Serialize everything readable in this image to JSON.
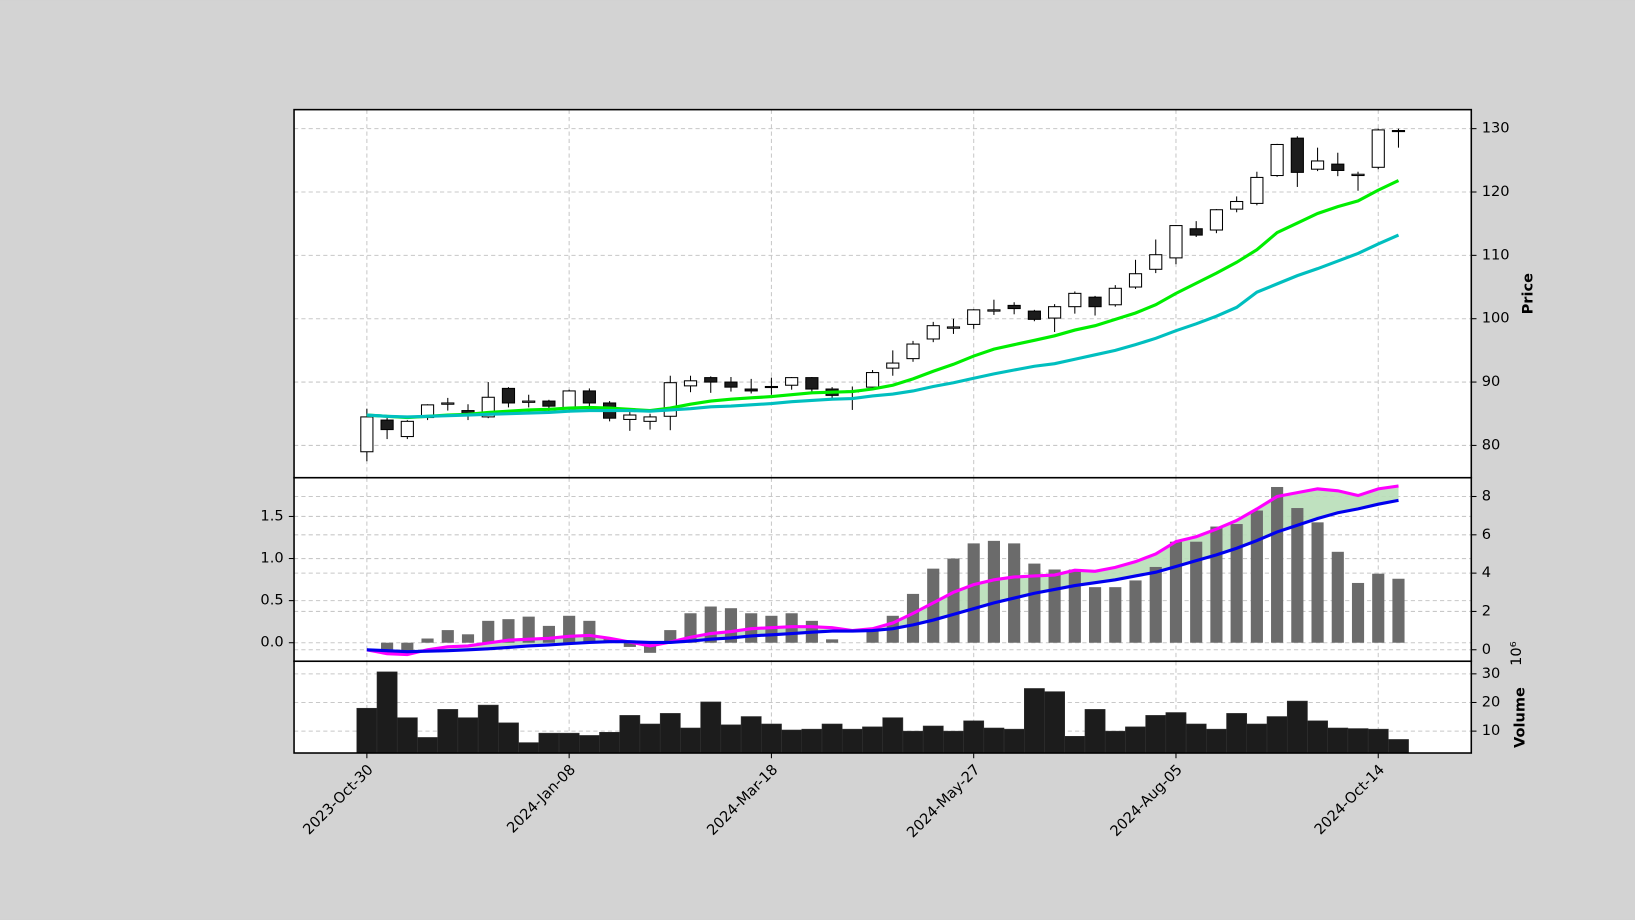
{
  "chart_data": [
    {
      "type": "candlestick",
      "categories": [
        "2023-Oct-30",
        null,
        null,
        null,
        null,
        null,
        null,
        null,
        null,
        null,
        "2024-Jan-08",
        null,
        null,
        null,
        null,
        null,
        null,
        null,
        null,
        null,
        "2024-Mar-18",
        null,
        null,
        null,
        null,
        null,
        null,
        null,
        null,
        null,
        "2024-May-27",
        null,
        null,
        null,
        null,
        null,
        null,
        null,
        null,
        null,
        "2024-Aug-05",
        null,
        null,
        null,
        null,
        null,
        null,
        null,
        null,
        null,
        "2024-Oct-14",
        null
      ],
      "open": [
        79,
        84,
        81.4,
        84.4,
        86.5,
        85.5,
        84.5,
        89,
        86.8,
        87,
        85.8,
        88.6,
        86.7,
        84.1,
        83.8,
        84.6,
        89.4,
        90.7,
        90,
        88.9,
        89.2,
        89.5,
        90.7,
        88.9,
        88.5,
        89.2,
        92.2,
        93.7,
        96.8,
        98.5,
        99.1,
        101.2,
        102.1,
        101.2,
        100.1,
        101.9,
        103.4,
        102.2,
        105,
        107.8,
        109.6,
        114.2,
        114,
        117.3,
        118.2,
        122.6,
        128.5,
        123.6,
        124.4,
        122.6,
        123.9,
        129.6
      ],
      "high": [
        85.8,
        84.5,
        84,
        86.5,
        87.5,
        86.5,
        90,
        89.2,
        88,
        87.2,
        88.8,
        89,
        87,
        85.5,
        85,
        91,
        91,
        90.9,
        90.8,
        90.5,
        90.7,
        90.8,
        90.8,
        89.2,
        89.3,
        91.9,
        95,
        96.5,
        99.5,
        100,
        101.5,
        103,
        102.6,
        101.4,
        102.3,
        104.3,
        103.6,
        105.3,
        109.3,
        112.5,
        114.8,
        115.4,
        117.3,
        119.3,
        123.2,
        127.6,
        128.8,
        127,
        126.2,
        123.2,
        130,
        130
      ],
      "low": [
        77.5,
        81,
        81,
        84,
        85.5,
        84,
        84.3,
        86,
        86,
        85,
        85.5,
        86,
        83.8,
        82.3,
        82.5,
        82.4,
        88.4,
        88.3,
        88.5,
        88.2,
        88,
        88.8,
        88.3,
        87.2,
        85.6,
        88.8,
        91,
        93.2,
        96.3,
        97.6,
        98.4,
        100.6,
        100.7,
        99.6,
        97.9,
        100.8,
        100.5,
        101.9,
        104.7,
        107.2,
        108.6,
        112.9,
        113.5,
        116.8,
        117.9,
        122.4,
        120.8,
        123.3,
        122.5,
        120.2,
        123.6,
        127
      ],
      "close": [
        84.5,
        82.5,
        83.8,
        86.4,
        86.7,
        85,
        87.6,
        86.7,
        87,
        86.2,
        88.6,
        86.7,
        84.3,
        84.8,
        84.5,
        89.9,
        90.2,
        90,
        89.2,
        88.6,
        89.3,
        90.7,
        88.9,
        87.9,
        88.6,
        91.5,
        93,
        96,
        98.9,
        98.7,
        101.4,
        101.4,
        101.6,
        99.9,
        101.9,
        104,
        101.9,
        104.8,
        107.1,
        110.1,
        114.7,
        113.2,
        117.2,
        118.5,
        122.3,
        127.5,
        123.1,
        124.9,
        123.4,
        122.8,
        129.8,
        129.7
      ],
      "up_color": "#ffffff",
      "down_color": "#1c1c1c",
      "edge_color": "#000000",
      "series": [
        {
          "color": "#00ee00",
          "values": [
            84.8,
            84.6,
            84.4,
            84.6,
            84.8,
            84.9,
            85.2,
            85.4,
            85.6,
            85.7,
            85.9,
            86.0,
            85.9,
            85.7,
            85.5,
            85.9,
            86.5,
            87.0,
            87.3,
            87.5,
            87.7,
            88.0,
            88.3,
            88.4,
            88.5,
            88.9,
            89.5,
            90.5,
            91.7,
            92.8,
            94.1,
            95.2,
            95.9,
            96.6,
            97.3,
            98.2,
            98.9,
            99.9,
            100.9,
            102.2,
            104.0,
            105.6,
            107.2,
            108.9,
            110.9,
            113.6,
            115.1,
            116.6,
            117.7,
            118.6,
            120.3,
            121.8
          ]
        },
        {
          "color": "#00bfbf",
          "values": [
            84.8,
            84.6,
            84.5,
            84.6,
            84.7,
            84.8,
            84.9,
            85.0,
            85.1,
            85.2,
            85.4,
            85.5,
            85.5,
            85.5,
            85.4,
            85.6,
            85.8,
            86.1,
            86.2,
            86.4,
            86.6,
            86.9,
            87.1,
            87.3,
            87.4,
            87.8,
            88.1,
            88.6,
            89.3,
            89.9,
            90.6,
            91.3,
            91.9,
            92.5,
            92.9,
            93.6,
            94.3,
            95.0,
            95.9,
            96.9,
            98.1,
            99.2,
            100.4,
            101.8,
            104.2,
            105.5,
            106.8,
            107.9,
            109.1,
            110.3,
            111.8,
            113.2
          ]
        }
      ],
      "ylabel": "Price",
      "ylim": [
        74.9,
        133.0
      ],
      "yticks": [
        80,
        90,
        100,
        110,
        120,
        130
      ],
      "grid": true
    },
    {
      "type": "macd",
      "values": [
        null,
        -0.12,
        -0.12,
        0.05,
        0.15,
        0.1,
        0.26,
        0.28,
        0.31,
        0.2,
        0.32,
        0.26,
        0.05,
        -0.05,
        -0.12,
        0.15,
        0.35,
        0.43,
        0.41,
        0.35,
        0.32,
        0.35,
        0.26,
        0.04,
        0,
        0.16,
        0.32,
        0.58,
        0.88,
        1.0,
        1.18,
        1.21,
        1.18,
        0.94,
        0.87,
        0.87,
        0.66,
        0.66,
        0.74,
        0.9,
        1.2,
        1.2,
        1.38,
        1.41,
        1.57,
        1.85,
        1.6,
        1.43,
        1.08,
        0.71,
        0.82,
        0.76
      ],
      "color": "#6b6b6b",
      "fill_color": "#b8deb8",
      "series": [
        {
          "color": "#ff00ff",
          "axis": "y2",
          "values": [
            0,
            -0.2,
            -0.25,
            0,
            0.15,
            0.2,
            0.35,
            0.5,
            0.55,
            0.6,
            0.7,
            0.75,
            0.6,
            0.4,
            0.2,
            0.4,
            0.65,
            0.85,
            0.95,
            1.1,
            1.15,
            1.2,
            1.2,
            1.15,
            1.0,
            1.1,
            1.4,
            1.9,
            2.45,
            3.0,
            3.4,
            3.65,
            3.8,
            3.85,
            3.9,
            4.15,
            4.1,
            4.3,
            4.6,
            5.0,
            5.65,
            5.9,
            6.3,
            6.75,
            7.35,
            8.0,
            8.2,
            8.4,
            8.3,
            8.05,
            8.4,
            8.55
          ]
        },
        {
          "color": "#0000ee",
          "axis": "y2",
          "values": [
            0,
            -0.05,
            -0.1,
            -0.08,
            -0.05,
            0,
            0.05,
            0.12,
            0.2,
            0.25,
            0.32,
            0.38,
            0.42,
            0.42,
            0.38,
            0.38,
            0.45,
            0.55,
            0.62,
            0.72,
            0.78,
            0.85,
            0.92,
            0.98,
            0.98,
            1.0,
            1.1,
            1.3,
            1.55,
            1.85,
            2.15,
            2.45,
            2.7,
            2.95,
            3.15,
            3.35,
            3.5,
            3.65,
            3.85,
            4.05,
            4.35,
            4.65,
            4.95,
            5.3,
            5.7,
            6.15,
            6.5,
            6.85,
            7.15,
            7.35,
            7.6,
            7.8
          ]
        }
      ],
      "ylim": [
        -0.22,
        1.96
      ],
      "yticks": [
        {
          "value": 0,
          "label": "0.0"
        },
        0.5,
        {
          "value": 1,
          "label": "1.0"
        },
        1.5
      ],
      "y2lim": [
        -0.6,
        8.98
      ],
      "y2ticks": [
        0,
        2,
        4,
        6,
        8
      ],
      "grid": true
    },
    {
      "type": "volume",
      "values": [
        18,
        30.7,
        14.7,
        7.8,
        17.6,
        14.7,
        19.1,
        12.9,
        6,
        9.3,
        9.3,
        8.5,
        9.6,
        15.5,
        12.5,
        16.2,
        11.1,
        20.2,
        12.2,
        15.1,
        12.5,
        10.4,
        10.7,
        12.5,
        10.7,
        11.5,
        14.7,
        10,
        11.8,
        10,
        13.6,
        11.1,
        10.7,
        24.9,
        23.8,
        8.2,
        17.6,
        10,
        11.5,
        15.5,
        16.5,
        12.5,
        10.7,
        16.2,
        12.5,
        15.1,
        20.5,
        13.6,
        11.1,
        10.9,
        10.7,
        7.1
      ],
      "color": "#1c1c1c",
      "ylabel": "Volume",
      "offset_label": "10⁶",
      "ylim": [
        2.36,
        34.4
      ],
      "yticks": [
        10,
        20,
        30
      ],
      "grid": true
    }
  ]
}
